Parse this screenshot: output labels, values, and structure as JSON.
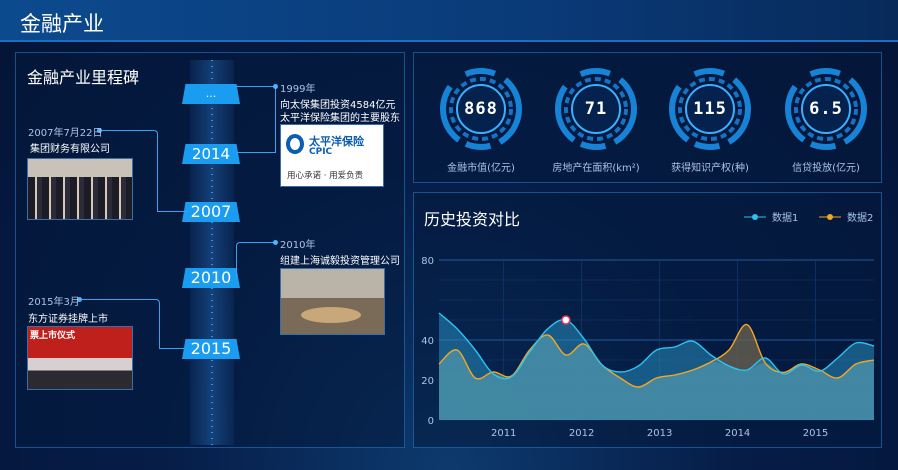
{
  "header": {
    "title": "金融产业"
  },
  "milestones": {
    "title": "金融产业里程碑",
    "years": [
      "...",
      "2014",
      "2007",
      "2010",
      "2015"
    ],
    "events": [
      {
        "date": "2007年7月22日",
        "text": "集团财务有限公司"
      },
      {
        "date": "1999年",
        "text": [
          "向太保集团投资4584亿元",
          "太平洋保险集团的主要股东"
        ],
        "logo": {
          "name": "太平洋保险",
          "en": "CPIC",
          "slogan": "用心承诺 · 用爱负责"
        }
      },
      {
        "date": "2010年",
        "text": "组建上海诚毅投资管理公司"
      },
      {
        "date": "2015年3月",
        "text": "东方证券挂牌上市",
        "photo_caption": "票上市仪式"
      }
    ]
  },
  "gauges": [
    {
      "value": "868",
      "label": "金融市值(亿元)"
    },
    {
      "value": "71",
      "label": "房地产在面积(km²)"
    },
    {
      "value": "115",
      "label": "获得知识产权(种)"
    },
    {
      "value": "6.5",
      "label": "信贷投放(亿元)"
    }
  ],
  "colors": {
    "accent": "#1a9cf0",
    "series1": "#29c4f0",
    "series2": "#f5a623",
    "highlight": "#e8365d"
  },
  "chart_data": {
    "type": "area",
    "title": "历史投资对比",
    "legend": {
      "position": "top-right",
      "entries": [
        "数据1",
        "数据2"
      ]
    },
    "xlim": [
      2010.17,
      2015.75
    ],
    "xticks": [
      "2011",
      "2012",
      "2013",
      "2014",
      "2015"
    ],
    "ylim": [
      0,
      80
    ],
    "yticks": [
      "0",
      "20",
      "40",
      "80"
    ],
    "grid": true,
    "series": [
      {
        "name": "数据1",
        "values": [
          53.5,
          45.6,
          35,
          23,
          21.6,
          34,
          45.6,
          50,
          40.6,
          27.5,
          24,
          27,
          35,
          36.5,
          39.4,
          32.5,
          27,
          25,
          31,
          23,
          27.5,
          24.4,
          31,
          38.5,
          37
        ]
      },
      {
        "name": "数据2",
        "values": [
          28,
          35,
          21,
          24,
          22,
          35,
          42.5,
          32.5,
          38,
          27.5,
          21,
          16.5,
          21,
          22.5,
          25,
          29,
          35,
          47.7,
          28.5,
          23.8,
          28,
          25,
          21,
          28,
          30
        ]
      }
    ],
    "highlight_point": {
      "series": "数据1",
      "index": 7
    }
  }
}
